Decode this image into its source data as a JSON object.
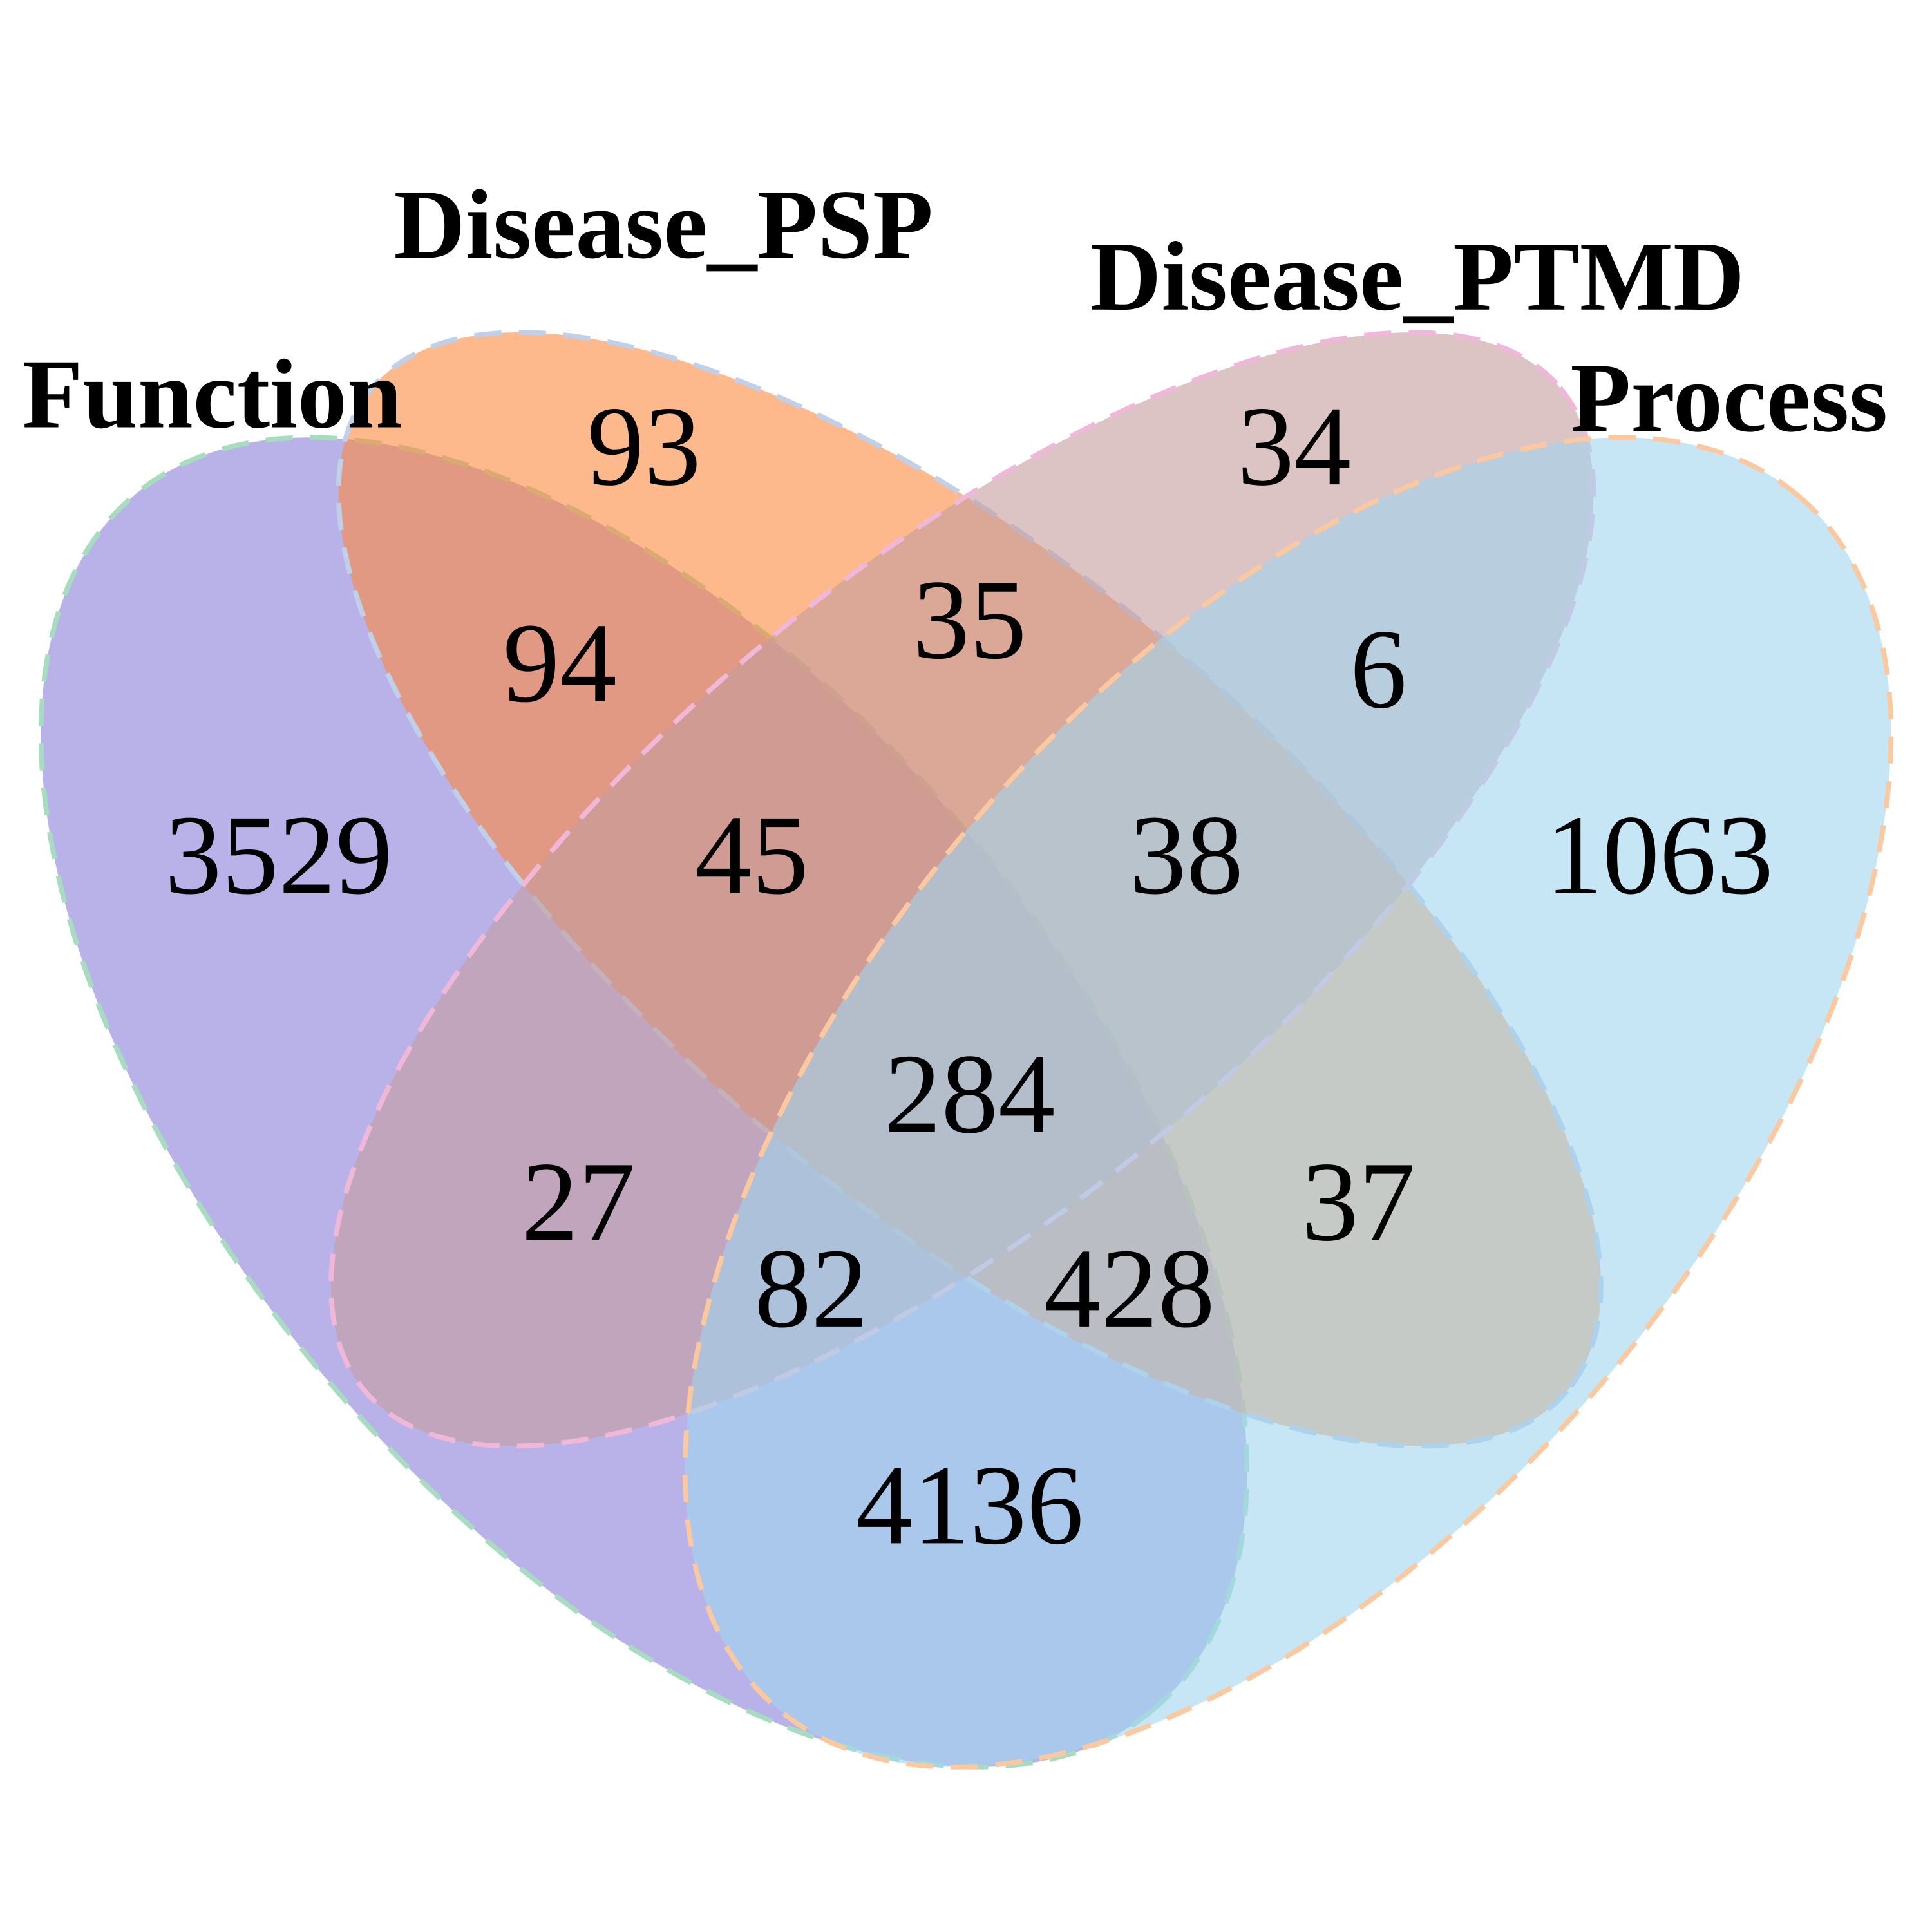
{
  "chart_data": {
    "type": "venn",
    "title": "",
    "sets": [
      {
        "name": "Function",
        "color": "#8a7fd9",
        "stroke": "#a8dcc0"
      },
      {
        "name": "Disease_PSP",
        "color": "#fb8840",
        "stroke": "#c0d0e8"
      },
      {
        "name": "Disease_PTMD",
        "color": "#c59c9e",
        "stroke": "#f0b8d8"
      },
      {
        "name": "Process",
        "color": "#a0d6ef",
        "stroke": "#fcc8a0"
      }
    ],
    "regions": [
      {
        "sets": [
          "Function"
        ],
        "value": 3529
      },
      {
        "sets": [
          "Disease_PSP"
        ],
        "value": 93
      },
      {
        "sets": [
          "Disease_PTMD"
        ],
        "value": 34
      },
      {
        "sets": [
          "Process"
        ],
        "value": 1063
      },
      {
        "sets": [
          "Function",
          "Disease_PSP"
        ],
        "value": 94
      },
      {
        "sets": [
          "Disease_PSP",
          "Disease_PTMD"
        ],
        "value": 35
      },
      {
        "sets": [
          "Disease_PTMD",
          "Process"
        ],
        "value": 6
      },
      {
        "sets": [
          "Function",
          "Disease_PSP",
          "Disease_PTMD"
        ],
        "value": 45
      },
      {
        "sets": [
          "Disease_PSP",
          "Disease_PTMD",
          "Process"
        ],
        "value": 38
      },
      {
        "sets": [
          "Function",
          "Disease_PSP",
          "Disease_PTMD",
          "Process"
        ],
        "value": 284
      },
      {
        "sets": [
          "Function",
          "Disease_PTMD"
        ],
        "value": 27
      },
      {
        "sets": [
          "Disease_PSP",
          "Process"
        ],
        "value": 37
      },
      {
        "sets": [
          "Function",
          "Disease_PTMD",
          "Process"
        ],
        "value": 82
      },
      {
        "sets": [
          "Function",
          "Disease_PSP",
          "Process"
        ],
        "value": 428
      },
      {
        "sets": [
          "Function",
          "Process"
        ],
        "value": 4136
      }
    ]
  }
}
